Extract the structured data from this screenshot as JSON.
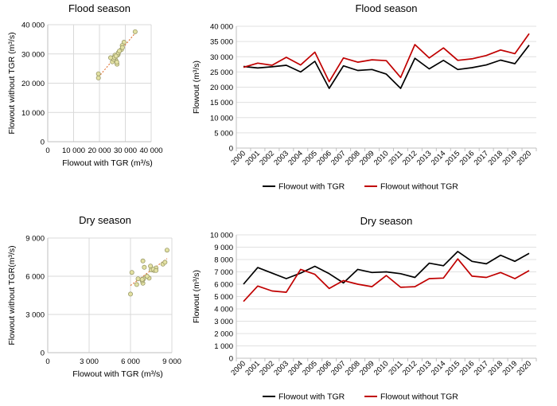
{
  "years": [
    "2000",
    "2001",
    "2002",
    "2003",
    "2004",
    "2005",
    "2006",
    "2007",
    "2008",
    "2009",
    "2010",
    "2011",
    "2012",
    "2013",
    "2014",
    "2015",
    "2016",
    "2017",
    "2018",
    "2019",
    "2020"
  ],
  "colors": {
    "with_tgr": "#000000",
    "without_tgr": "#c00000",
    "scatter_fill": "#e3e1a3",
    "scatter_edge": "#9a9a6a",
    "trend": "#e07030"
  },
  "chart_data": [
    {
      "id": "flood-scatter",
      "type": "scatter",
      "title": "Flood season",
      "xlabel": "Flowout with TGR (m³/s)",
      "ylabel": "Flowout without TGR (m³/s)",
      "xlim": [
        0,
        40000
      ],
      "ylim": [
        0,
        40000
      ],
      "x_ticks": [
        "0",
        "10 000",
        "20 000",
        "30 000",
        "40 000"
      ],
      "y_ticks": [
        "0",
        "10 000",
        "20 000",
        "30 000",
        "40 000"
      ],
      "x": [
        26800,
        26300,
        26700,
        27200,
        25000,
        28500,
        19600,
        27000,
        25500,
        25800,
        24300,
        19600,
        29500,
        26000,
        28800,
        25800,
        26400,
        27300,
        28900,
        27700,
        33800
      ],
      "y": [
        26500,
        27900,
        27200,
        29800,
        27300,
        31500,
        21800,
        29600,
        28200,
        29000,
        28700,
        23200,
        34000,
        29600,
        32900,
        28800,
        29300,
        30400,
        32200,
        31000,
        37600
      ],
      "trendline": "linear"
    },
    {
      "id": "flood-line",
      "type": "line",
      "title": "Flood season",
      "xlabel": "",
      "ylabel": "Flowout (m³/s)",
      "ylim": [
        0,
        40000
      ],
      "y_ticks": [
        "0",
        "5 000",
        "10 000",
        "15 000",
        "20 000",
        "25 000",
        "30 000",
        "35 000",
        "40 000"
      ],
      "series": [
        {
          "name": "Flowout with TGR",
          "values": [
            26800,
            26300,
            26700,
            27200,
            25000,
            28500,
            19600,
            27000,
            25500,
            25800,
            24300,
            19600,
            29500,
            26000,
            28800,
            25800,
            26400,
            27300,
            28900,
            27700,
            33800
          ]
        },
        {
          "name": "Flowout without TGR",
          "values": [
            26500,
            27900,
            27200,
            29800,
            27300,
            31500,
            21800,
            29600,
            28200,
            29000,
            28700,
            23200,
            34000,
            29600,
            32900,
            28800,
            29300,
            30400,
            32200,
            31000,
            37600
          ]
        }
      ],
      "legend": "bottom"
    },
    {
      "id": "dry-scatter",
      "type": "scatter",
      "title": "Dry season",
      "xlabel": "Flowout with TGR (m³/s)",
      "ylabel": "Flowout without TGR(m³/s)",
      "xlim": [
        0,
        9000
      ],
      "ylim": [
        0,
        9000
      ],
      "x_ticks": [
        "0",
        "3 000",
        "6 000",
        "9 000"
      ],
      "y_ticks": [
        "0",
        "3 000",
        "6 000",
        "9 000"
      ],
      "x": [
        6000,
        7350,
        6900,
        6450,
        6900,
        7450,
        6850,
        6100,
        7200,
        6950,
        7000,
        6850,
        6550,
        7700,
        7500,
        8650,
        7850,
        7650,
        8350,
        7850,
        8500
      ],
      "y": [
        4600,
        5850,
        5450,
        5350,
        7200,
        6800,
        5650,
        6300,
        6000,
        5800,
        6700,
        5750,
        5800,
        6450,
        6500,
        8050,
        6650,
        6550,
        6950,
        6450,
        7100
      ],
      "trendline": "linear"
    },
    {
      "id": "dry-line",
      "type": "line",
      "title": "Dry season",
      "xlabel": "",
      "ylabel": "Flowout (m³/s)",
      "ylim": [
        0,
        10000
      ],
      "y_ticks": [
        "0",
        "1 000",
        "2 000",
        "3 000",
        "4 000",
        "5 000",
        "6 000",
        "7 000",
        "8 000",
        "9 000",
        "10 000"
      ],
      "series": [
        {
          "name": "Flowout with TGR",
          "values": [
            6000,
            7350,
            6900,
            6450,
            6900,
            7450,
            6850,
            6100,
            7200,
            6950,
            7000,
            6850,
            6550,
            7700,
            7500,
            8650,
            7850,
            7650,
            8350,
            7850,
            8500
          ]
        },
        {
          "name": "Flowout without TGR",
          "values": [
            4600,
            5850,
            5450,
            5350,
            7200,
            6800,
            5650,
            6300,
            6000,
            5800,
            6700,
            5750,
            5800,
            6450,
            6500,
            8050,
            6650,
            6550,
            6950,
            6450,
            7100
          ]
        }
      ],
      "legend": "bottom"
    }
  ]
}
